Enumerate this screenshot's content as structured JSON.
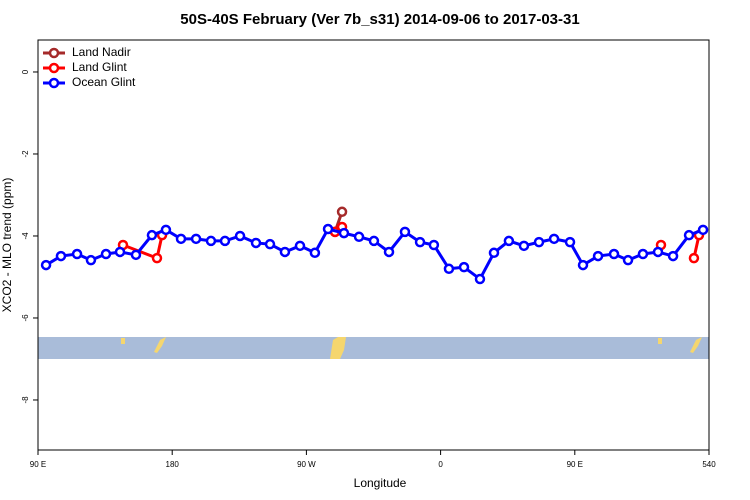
{
  "chart_data": {
    "type": "line",
    "title": "50S-40S February (Ver 7b_s31)   2014-09-06 to 2017-03-31",
    "xlabel": "Longitude",
    "ylabel": "XCO2 - MLO trend (ppm)",
    "xlim": [
      90,
      540
    ],
    "ylim": [
      0.78,
      -9.22
    ],
    "xticks": [
      {
        "value": 90,
        "label": "90 E"
      },
      180,
      {
        "value": 270,
        "label": "90 W"
      },
      {
        "value": 360,
        "label": "0"
      },
      {
        "value": 450,
        "label": "90 E"
      },
      540
    ],
    "yticks": [
      0,
      -2,
      -4,
      -6,
      -8
    ],
    "legend": "top-left",
    "series": [
      {
        "name": "Land Nadir",
        "color": "#a52a2a",
        "x": [
          289.2,
          293.9
        ],
        "values": [
          -3.9,
          -3.41
        ]
      },
      {
        "name": "Land Glint",
        "color": "#ff0000",
        "x": [
          147.0,
          169.8,
          173.2,
          null,
          289.2,
          293.9,
          null,
          507.8,
          null,
          529.9,
          533.3
        ],
        "values": [
          -4.22,
          -4.54,
          -3.98,
          null,
          -3.9,
          -3.78,
          null,
          -4.22,
          null,
          -4.54,
          -3.98
        ]
      },
      {
        "name": "Ocean Glint",
        "color": "#0000ff",
        "x": [
          95.4,
          105.4,
          116.2,
          125.5,
          135.6,
          145.0,
          155.7,
          166.4,
          175.8,
          185.9,
          196.0,
          206.0,
          215.4,
          225.5,
          236.2,
          245.6,
          255.6,
          265.7,
          275.7,
          284.5,
          295.2,
          305.3,
          315.3,
          325.4,
          336.1,
          346.2,
          355.5,
          365.6,
          375.7,
          386.4,
          395.8,
          405.8,
          415.9,
          426.0,
          436.1,
          446.8,
          455.5,
          465.6,
          476.3,
          485.7,
          495.7,
          505.8,
          515.9,
          526.6,
          536.0
        ],
        "values": [
          -4.71,
          -4.49,
          -4.44,
          -4.59,
          -4.44,
          -4.39,
          -4.46,
          -3.98,
          -3.85,
          -4.07,
          -4.07,
          -4.12,
          -4.12,
          -4.0,
          -4.17,
          -4.2,
          -4.39,
          -4.24,
          -4.41,
          -3.83,
          -3.93,
          -4.02,
          -4.12,
          -4.39,
          -3.9,
          -4.15,
          -4.22,
          -4.8,
          -4.76,
          -5.05,
          -4.41,
          -4.12,
          -4.24,
          -4.15,
          -4.07,
          -4.15,
          -4.71,
          -4.49,
          -4.44,
          -4.59,
          -4.44,
          -4.39,
          -4.49,
          -3.98,
          -3.85
        ]
      }
    ]
  }
}
